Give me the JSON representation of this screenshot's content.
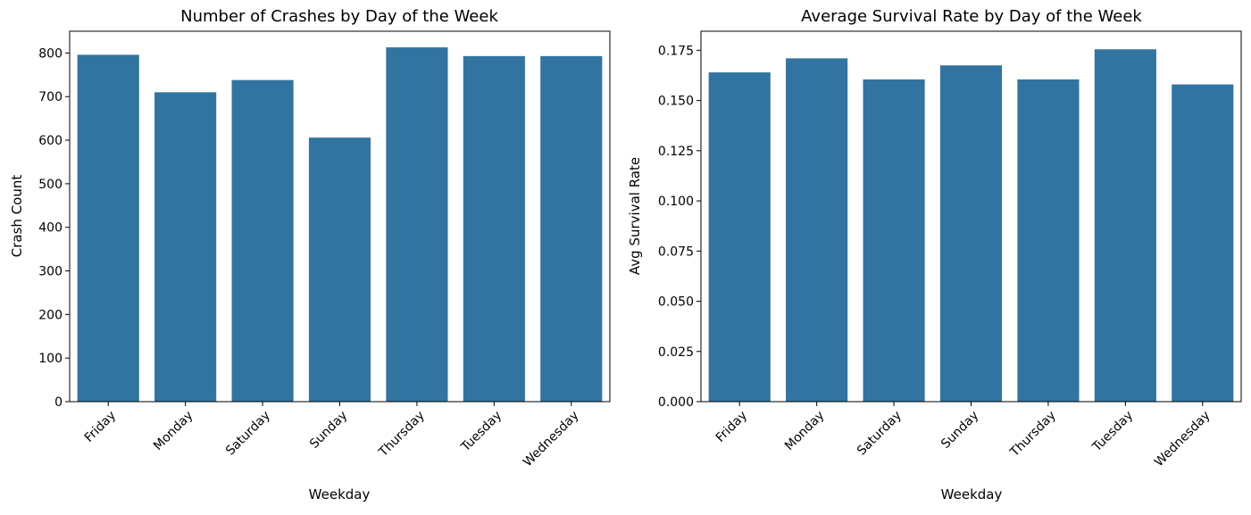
{
  "colors": {
    "bar": "#3274a1",
    "axis": "#000000",
    "background": "#ffffff"
  },
  "chart_data": [
    {
      "type": "bar",
      "title": "Number of Crashes by Day of the Week",
      "xlabel": "Weekday",
      "ylabel": "Crash Count",
      "categories": [
        "Friday",
        "Monday",
        "Saturday",
        "Sunday",
        "Thursday",
        "Tuesday",
        "Wednesday"
      ],
      "values": [
        796,
        710,
        738,
        606,
        813,
        793,
        793
      ],
      "ylim": [
        0,
        850
      ],
      "yticks": [
        0,
        100,
        200,
        300,
        400,
        500,
        600,
        700,
        800
      ],
      "ytick_labels": [
        "0",
        "100",
        "200",
        "300",
        "400",
        "500",
        "600",
        "700",
        "800"
      ],
      "grid": false,
      "legend": "none"
    },
    {
      "type": "bar",
      "title": "Average Survival Rate by Day of the Week",
      "xlabel": "Weekday",
      "ylabel": "Avg Survival Rate",
      "categories": [
        "Friday",
        "Monday",
        "Saturday",
        "Sunday",
        "Thursday",
        "Tuesday",
        "Wednesday"
      ],
      "values": [
        0.164,
        0.171,
        0.1605,
        0.1675,
        0.1605,
        0.1755,
        0.158
      ],
      "ylim": [
        0,
        0.1845
      ],
      "yticks": [
        0,
        0.025,
        0.05,
        0.075,
        0.1,
        0.125,
        0.15,
        0.175
      ],
      "ytick_labels": [
        "0.000",
        "0.025",
        "0.050",
        "0.075",
        "0.100",
        "0.125",
        "0.150",
        "0.175"
      ],
      "grid": false,
      "legend": "none"
    }
  ]
}
